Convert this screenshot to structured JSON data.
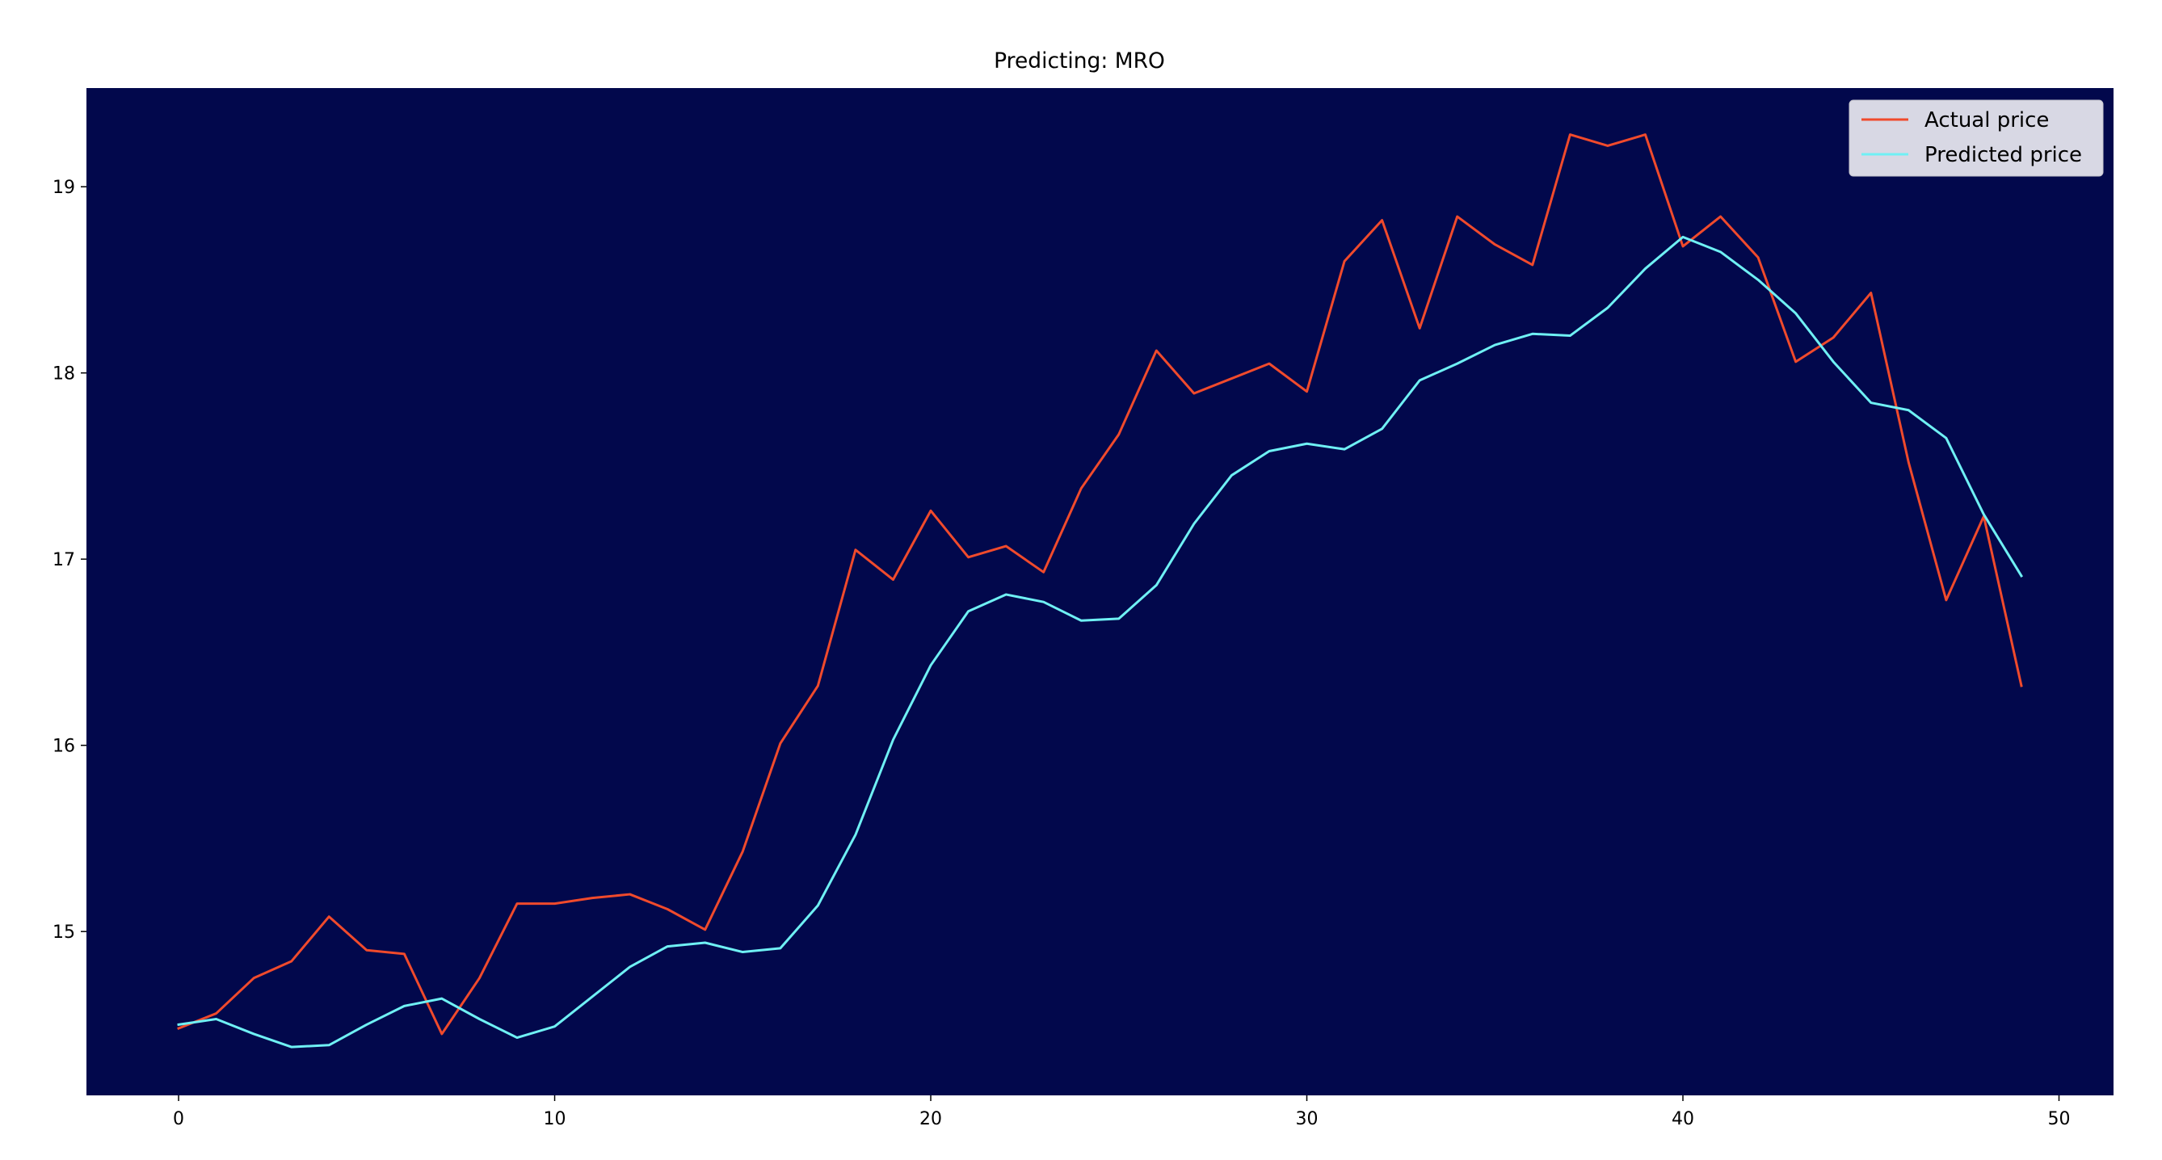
{
  "chart_data": {
    "type": "line",
    "title": "Predicting: MRO",
    "xlabel": "",
    "ylabel": "",
    "xlim": [
      -2.45,
      51.45
    ],
    "ylim": [
      14.12,
      19.53
    ],
    "xticks": [
      0,
      10,
      20,
      30,
      40,
      50
    ],
    "yticks": [
      15,
      16,
      17,
      18,
      19
    ],
    "grid": false,
    "legend_position": "top-right",
    "colors": {
      "plot_background": "#02084c",
      "figure_background": "#ffffff",
      "legend_background": "#d8d8e4"
    },
    "x": [
      0,
      1,
      2,
      3,
      4,
      5,
      6,
      7,
      8,
      9,
      10,
      11,
      12,
      13,
      14,
      15,
      16,
      17,
      18,
      19,
      20,
      21,
      22,
      23,
      24,
      25,
      26,
      27,
      28,
      29,
      30,
      31,
      32,
      33,
      34,
      35,
      36,
      37,
      38,
      39,
      40,
      41,
      42,
      43,
      44,
      45,
      46,
      47,
      48,
      49
    ],
    "series": [
      {
        "name": "Actual price",
        "color": "#f04a2c",
        "values": [
          14.48,
          14.56,
          14.75,
          14.84,
          15.08,
          14.9,
          14.88,
          14.45,
          14.75,
          15.15,
          15.15,
          15.18,
          15.2,
          15.12,
          15.01,
          15.43,
          16.01,
          16.32,
          17.05,
          16.89,
          17.26,
          17.01,
          17.07,
          16.93,
          17.38,
          17.67,
          18.12,
          17.89,
          17.97,
          18.05,
          17.9,
          18.6,
          18.82,
          18.24,
          18.84,
          18.69,
          18.58,
          19.28,
          19.22,
          19.28,
          18.68,
          18.84,
          18.62,
          18.06,
          18.19,
          18.43,
          17.52,
          16.78,
          17.23,
          16.32
        ]
      },
      {
        "name": "Predicted price",
        "color": "#6ff0f4",
        "values": [
          14.5,
          14.53,
          14.45,
          14.38,
          14.39,
          14.5,
          14.6,
          14.64,
          14.53,
          14.43,
          14.49,
          14.65,
          14.81,
          14.92,
          14.94,
          14.89,
          14.91,
          15.14,
          15.52,
          16.03,
          16.43,
          16.72,
          16.81,
          16.77,
          16.67,
          16.68,
          16.86,
          17.19,
          17.45,
          17.58,
          17.62,
          17.59,
          17.7,
          17.96,
          18.05,
          18.15,
          18.21,
          18.2,
          18.35,
          18.56,
          18.73,
          18.65,
          18.5,
          18.32,
          18.06,
          17.84,
          17.8,
          17.65,
          17.24,
          16.91
        ]
      }
    ]
  }
}
